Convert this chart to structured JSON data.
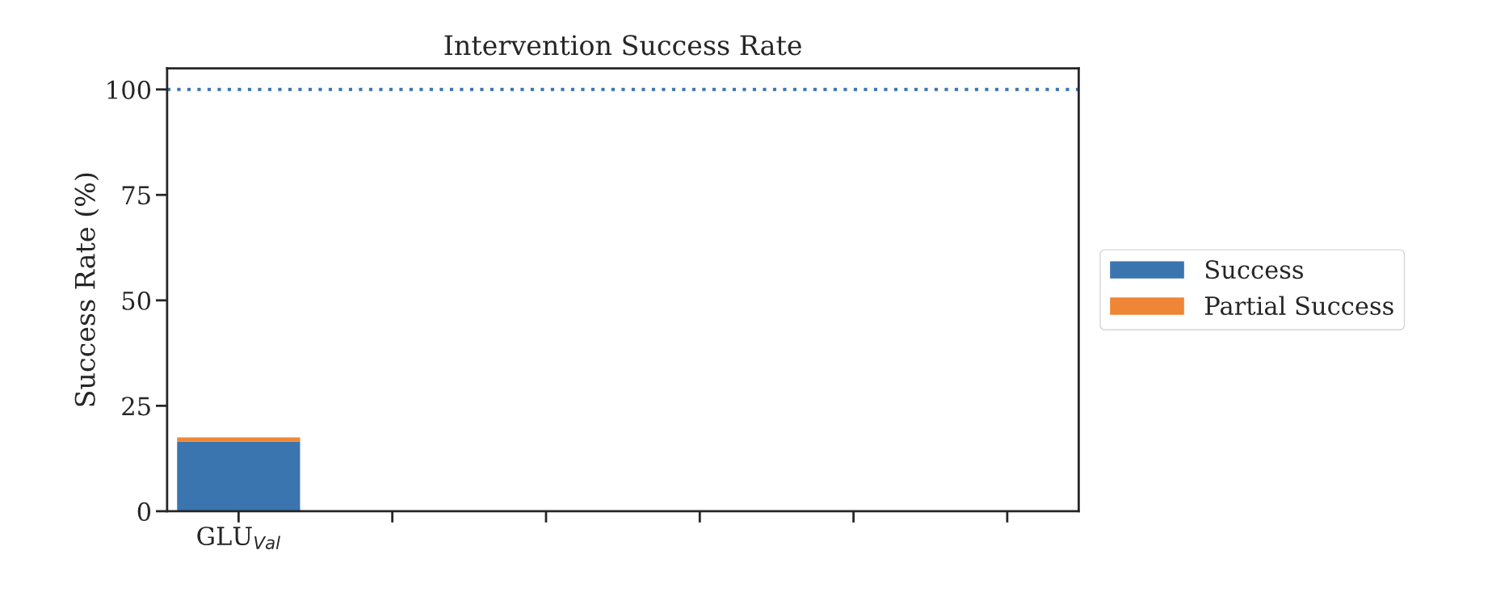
{
  "chart_data": {
    "type": "bar",
    "title": "Intervention Success Rate",
    "ylabel": "Success Rate (%)",
    "categories": [
      "GLU$_{Val}$",
      null,
      null,
      null,
      null,
      null
    ],
    "stacked": true,
    "series": [
      {
        "name": "Success",
        "color": "#3b75af",
        "values": [
          16.5,
          0,
          0,
          0,
          0,
          null
        ]
      },
      {
        "name": "Partial Success",
        "color": "#ef8636",
        "values": [
          1,
          0,
          0,
          0,
          0,
          null
        ]
      }
    ],
    "ylim": [
      0,
      105
    ],
    "yticks": [
      0,
      25,
      50,
      75,
      100
    ],
    "ref_lines": [
      {
        "axis": "y",
        "value": 100,
        "color": "#3b75af",
        "line_style": "dotted"
      }
    ],
    "grid": false,
    "legend": "right"
  }
}
